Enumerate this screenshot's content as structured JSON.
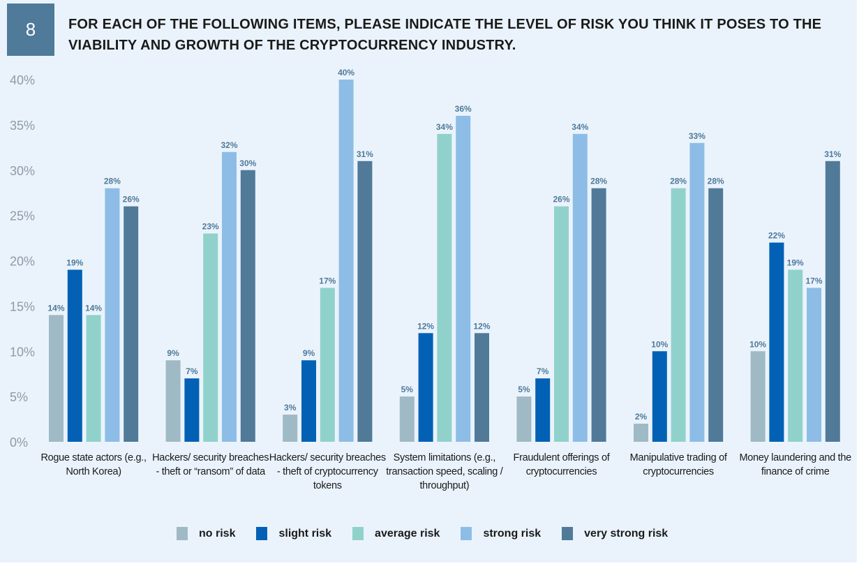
{
  "badge": "8",
  "title": "FOR EACH OF THE FOLLOWING ITEMS, PLEASE INDICATE THE LEVEL OF RISK YOU THINK IT POSES TO THE VIABILITY AND GROWTH OF THE CRYPTOCURRENCY INDUSTRY.",
  "chart_data": {
    "type": "bar",
    "title": "For each of the following items, please indicate the level of risk you think it poses to the viability and growth of the cryptocurrency industry.",
    "ylim": [
      0,
      40
    ],
    "yticks": [
      "0%",
      "5%",
      "10%",
      "15%",
      "20%",
      "25%",
      "30%",
      "35%",
      "40%"
    ],
    "legend_position": "bottom",
    "categories": [
      "Rogue state actors (e.g., North Korea)",
      "Hackers/ security breaches - theft or “ransom” of data",
      "Hackers/ security breaches - theft of cryptocurrency tokens",
      "System limitations (e.g., transaction speed, scaling / throughput)",
      "Fraudulent offerings of cryptocurrencies",
      "Manipulative trading of cryptocurrencies",
      "Money laundering and the finance of crime"
    ],
    "series": [
      {
        "name": "no risk",
        "color": "#9fbac4",
        "values": [
          14,
          9,
          3,
          5,
          5,
          2,
          10
        ]
      },
      {
        "name": "slight risk",
        "color": "#0261b4",
        "values": [
          19,
          7,
          9,
          12,
          7,
          10,
          22
        ]
      },
      {
        "name": "average risk",
        "color": "#90d2cb",
        "values": [
          14,
          23,
          17,
          34,
          26,
          28,
          19
        ]
      },
      {
        "name": "strong risk",
        "color": "#8dbde6",
        "values": [
          28,
          32,
          40,
          36,
          34,
          33,
          17
        ]
      },
      {
        "name": "very strong risk",
        "color": "#507a98",
        "values": [
          26,
          30,
          31,
          12,
          28,
          28,
          31
        ]
      }
    ]
  }
}
